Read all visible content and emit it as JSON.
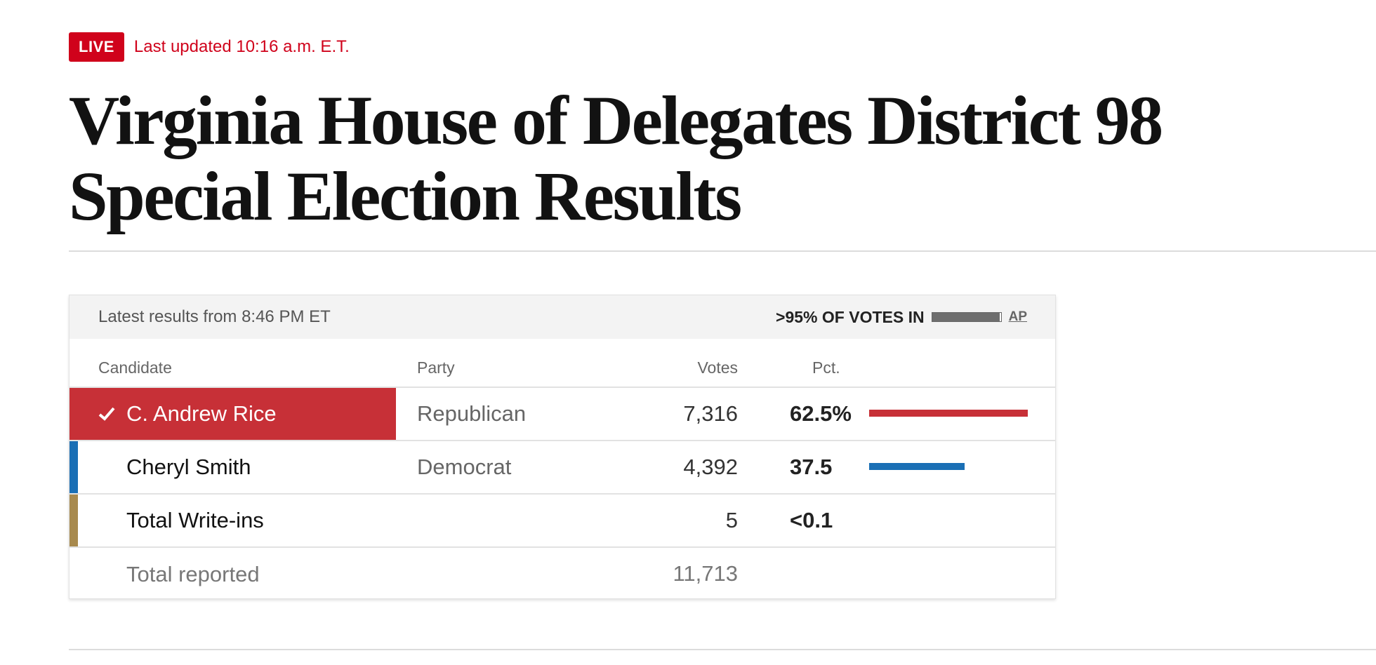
{
  "live": {
    "badge": "LIVE",
    "updated": "Last updated 10:16 a.m. E.T."
  },
  "headline": "Virginia House of Delegates District 98 Special Election Results",
  "results": {
    "latest": "Latest results from 8:46 PM ET",
    "votes_in": ">95% OF VOTES IN",
    "reporting_fraction": 0.98,
    "source": "AP",
    "columns": {
      "candidate": "Candidate",
      "party": "Party",
      "votes": "Votes",
      "pct": "Pct."
    },
    "rows": [
      {
        "name": "C. Andrew Rice",
        "party": "Republican",
        "votes": "7,316",
        "pct": "62.5%",
        "pct_value": 62.5,
        "color": "#c73037",
        "winner": true
      },
      {
        "name": "Cheryl Smith",
        "party": "Democrat",
        "votes": "4,392",
        "pct": "37.5",
        "pct_value": 37.5,
        "color": "#1a6fb5",
        "winner": false
      },
      {
        "name": "Total Write-ins",
        "party": "",
        "votes": "5",
        "pct": "<0.1",
        "pct_value": 0.0,
        "color": "#a88a4e",
        "winner": false
      }
    ],
    "total": {
      "label": "Total reported",
      "votes": "11,713"
    }
  },
  "icons": {
    "winner_check": "check-icon"
  }
}
